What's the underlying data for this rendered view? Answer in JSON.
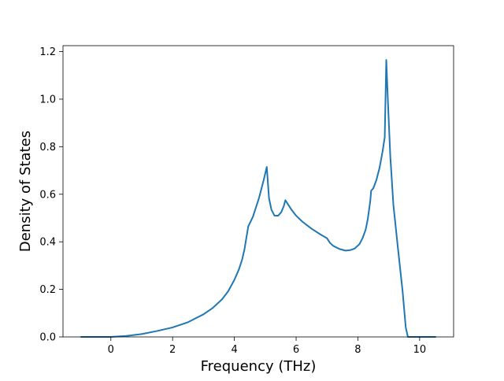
{
  "chart_data": {
    "type": "line",
    "title": "",
    "xlabel": "Frequency (THz)",
    "ylabel": "Density of States",
    "xlim": [
      -1.55,
      11.1
    ],
    "ylim": [
      0.0,
      1.225
    ],
    "x_ticks": [
      0,
      2,
      4,
      6,
      8,
      10
    ],
    "x_tick_labels": [
      "0",
      "2",
      "4",
      "6",
      "8",
      "10"
    ],
    "y_ticks": [
      0.0,
      0.2,
      0.4,
      0.6,
      0.8,
      1.0,
      1.2
    ],
    "y_tick_labels": [
      "0.0",
      "0.2",
      "0.4",
      "0.6",
      "0.8",
      "1.0",
      "1.2"
    ],
    "grid": false,
    "legend": "none",
    "series_color": "#1f77b4",
    "series": [
      {
        "x": [
          -0.98,
          0.0,
          0.5,
          1.0,
          1.5,
          2.0,
          2.5,
          3.0,
          3.3,
          3.6,
          3.8,
          4.0,
          4.15,
          4.25,
          4.33,
          4.38,
          4.45,
          4.6,
          4.8,
          4.95,
          5.05,
          5.12,
          5.2,
          5.3,
          5.42,
          5.52,
          5.6,
          5.65,
          5.7,
          5.85,
          6.0,
          6.2,
          6.5,
          6.8,
          7.0,
          7.1,
          7.2,
          7.4,
          7.6,
          7.75,
          7.9,
          8.05,
          8.15,
          8.25,
          8.32,
          8.4,
          8.43,
          8.5,
          8.6,
          8.7,
          8.8,
          8.87,
          8.92,
          8.97,
          9.05,
          9.15,
          9.3,
          9.45,
          9.55,
          9.62,
          10.0,
          10.53
        ],
        "values": [
          0.0,
          0.0,
          0.004,
          0.012,
          0.025,
          0.04,
          0.062,
          0.095,
          0.122,
          0.158,
          0.192,
          0.24,
          0.285,
          0.325,
          0.37,
          0.41,
          0.465,
          0.505,
          0.585,
          0.66,
          0.715,
          0.585,
          0.535,
          0.51,
          0.51,
          0.525,
          0.55,
          0.575,
          0.565,
          0.535,
          0.51,
          0.485,
          0.455,
          0.43,
          0.415,
          0.395,
          0.383,
          0.37,
          0.363,
          0.365,
          0.372,
          0.39,
          0.415,
          0.45,
          0.495,
          0.57,
          0.615,
          0.625,
          0.66,
          0.71,
          0.78,
          0.84,
          1.165,
          1.0,
          0.76,
          0.555,
          0.37,
          0.19,
          0.04,
          0.0,
          0.0,
          0.0
        ]
      }
    ]
  }
}
